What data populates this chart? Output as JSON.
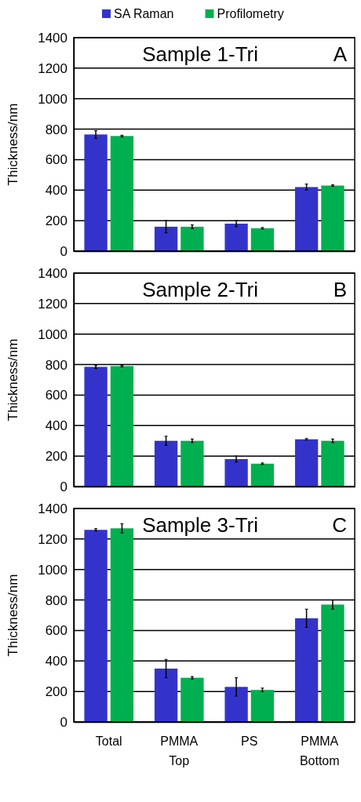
{
  "chart_data": [
    {
      "type": "bar",
      "title": "Sample 1-Tri",
      "annotations": [
        "A"
      ],
      "ylabel": "Thickness/nm",
      "categories": [
        null,
        null,
        null,
        null
      ],
      "ylim": [
        0,
        1400
      ],
      "yticks": [
        0,
        200,
        400,
        600,
        800,
        1000,
        1200,
        1400
      ],
      "grid": "y",
      "legend": "top",
      "tick_labels": "y",
      "series": [
        {
          "name": "SA Raman",
          "color": "#3333cc",
          "values": [
            765,
            160,
            180,
            420
          ],
          "errors": [
            25,
            40,
            20,
            20
          ]
        },
        {
          "name": "Profilometry",
          "color": "#00b050",
          "values": [
            755,
            160,
            150,
            430
          ],
          "errors": [
            5,
            12,
            5,
            5
          ]
        }
      ]
    },
    {
      "type": "bar",
      "title": "Sample 2-Tri",
      "annotations": [
        "B"
      ],
      "ylabel": "Thickness/nm",
      "categories": [
        null,
        null,
        null,
        null
      ],
      "ylim": [
        0,
        1400
      ],
      "yticks": [
        0,
        200,
        400,
        600,
        800,
        1000,
        1200,
        1400
      ],
      "grid": "y",
      "tick_labels": "y",
      "series": [
        {
          "color": "#3333cc",
          "values": [
            785,
            300,
            180,
            310
          ],
          "errors": [
            10,
            30,
            20,
            5
          ]
        },
        {
          "color": "#00b050",
          "values": [
            790,
            300,
            150,
            300
          ],
          "errors": [
            5,
            12,
            5,
            12
          ]
        }
      ]
    },
    {
      "type": "bar",
      "title": "Sample 3-Tri",
      "annotations": [
        "C"
      ],
      "ylabel": "Thickness/nm",
      "categories": [
        "Total",
        "PMMA\nTop",
        "PS",
        "PMMA\nBottom"
      ],
      "ylim": [
        0,
        1400
      ],
      "yticks": [
        0,
        200,
        400,
        600,
        800,
        1000,
        1200,
        1400
      ],
      "grid": "y",
      "series": [
        {
          "color": "#3333cc",
          "values": [
            1260,
            350,
            230,
            680
          ],
          "errors": [
            8,
            60,
            60,
            60
          ]
        },
        {
          "color": "#00b050",
          "values": [
            1270,
            290,
            210,
            770
          ],
          "errors": [
            30,
            8,
            12,
            30
          ]
        }
      ]
    }
  ]
}
